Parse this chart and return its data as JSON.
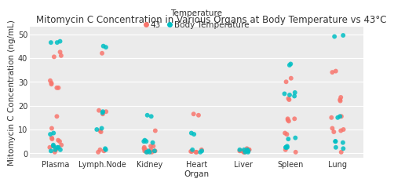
{
  "title": "Mitomycin C Concentration in Various Organs at Body Temperature vs 43°C",
  "xlabel": "Organ",
  "ylabel": "Mitomycin C Concentration (ng/mL)",
  "legend_title": "Temperature",
  "legend_labels": [
    "43",
    "Body Temperature"
  ],
  "color_43": "#F8766D",
  "color_body": "#00BFC4",
  "plot_bg": "#EBEBEB",
  "fig_bg": "#FFFFFF",
  "grid_color": "#FFFFFF",
  "ylim": [
    -2,
    53
  ],
  "yticks": [
    0,
    10,
    20,
    30,
    40,
    50
  ],
  "categories": [
    "Plasma",
    "Lymph.Node",
    "Kidney",
    "Heart",
    "Liver",
    "Spleen",
    "Lung"
  ],
  "data_43": {
    "Plasma": [
      40.5,
      41.0,
      27.5,
      27.5,
      29.5,
      29.0,
      30.5,
      42.5,
      15.5,
      5.5,
      2.5,
      3.5,
      5.0,
      6.0,
      6.5,
      10.5,
      3.0,
      1.5,
      0.5
    ],
    "Lymph.Node": [
      1.5,
      1.0,
      0.5,
      9.5,
      9.0,
      42.0,
      17.5,
      18.0,
      16.5
    ],
    "Kidney": [
      3.0,
      2.0,
      1.5,
      1.5,
      2.5,
      1.0,
      9.5,
      3.0,
      0.5,
      1.0,
      0.5
    ],
    "Heart": [
      0.5,
      0.8,
      0.5,
      0.8,
      1.5,
      16.5,
      16.0
    ],
    "Liver": [
      1.0,
      0.5,
      0.5,
      1.0,
      1.5,
      2.0,
      1.5,
      1.5,
      1.0
    ],
    "Spleen": [
      0.5,
      1.5,
      8.0,
      8.5,
      23.0,
      22.5,
      14.5,
      14.5,
      13.5,
      14.0,
      31.5,
      30.0
    ],
    "Lung": [
      0.5,
      10.5,
      10.0,
      9.5,
      9.0,
      15.0,
      15.5,
      22.5,
      22.0,
      23.5,
      34.0,
      34.5
    ]
  },
  "data_body": {
    "Plasma": [
      46.5,
      47.0,
      46.5,
      8.5,
      8.0,
      3.5,
      3.0,
      2.5,
      2.5,
      1.5,
      1.5,
      1.0
    ],
    "Lymph.Node": [
      2.0,
      1.5,
      45.0,
      44.5,
      17.0,
      17.5,
      10.5,
      10.0
    ],
    "Kidney": [
      5.5,
      5.0,
      15.5,
      16.0,
      0.5,
      1.0,
      0.5,
      1.0,
      4.5,
      5.0
    ],
    "Heart": [
      8.5,
      8.0,
      1.5,
      1.0,
      0.5
    ],
    "Liver": [
      0.5,
      0.5,
      1.0,
      1.5,
      1.0,
      1.5,
      1.5
    ],
    "Spleen": [
      6.5,
      6.0,
      2.5,
      2.5,
      24.5,
      24.0,
      25.5,
      25.0,
      37.5,
      37.0,
      3.0,
      2.5
    ],
    "Lung": [
      5.0,
      4.5,
      5.0,
      15.0,
      15.5,
      2.5,
      2.0,
      49.5,
      49.0
    ]
  },
  "jitter_seed": 42,
  "jitter_amount": 0.13,
  "marker_size": 18,
  "marker_alpha": 0.85,
  "title_fontsize": 8.5,
  "axis_label_fontsize": 7.5,
  "tick_fontsize": 7,
  "legend_fontsize": 7.5,
  "legend_title_fontsize": 7.5
}
